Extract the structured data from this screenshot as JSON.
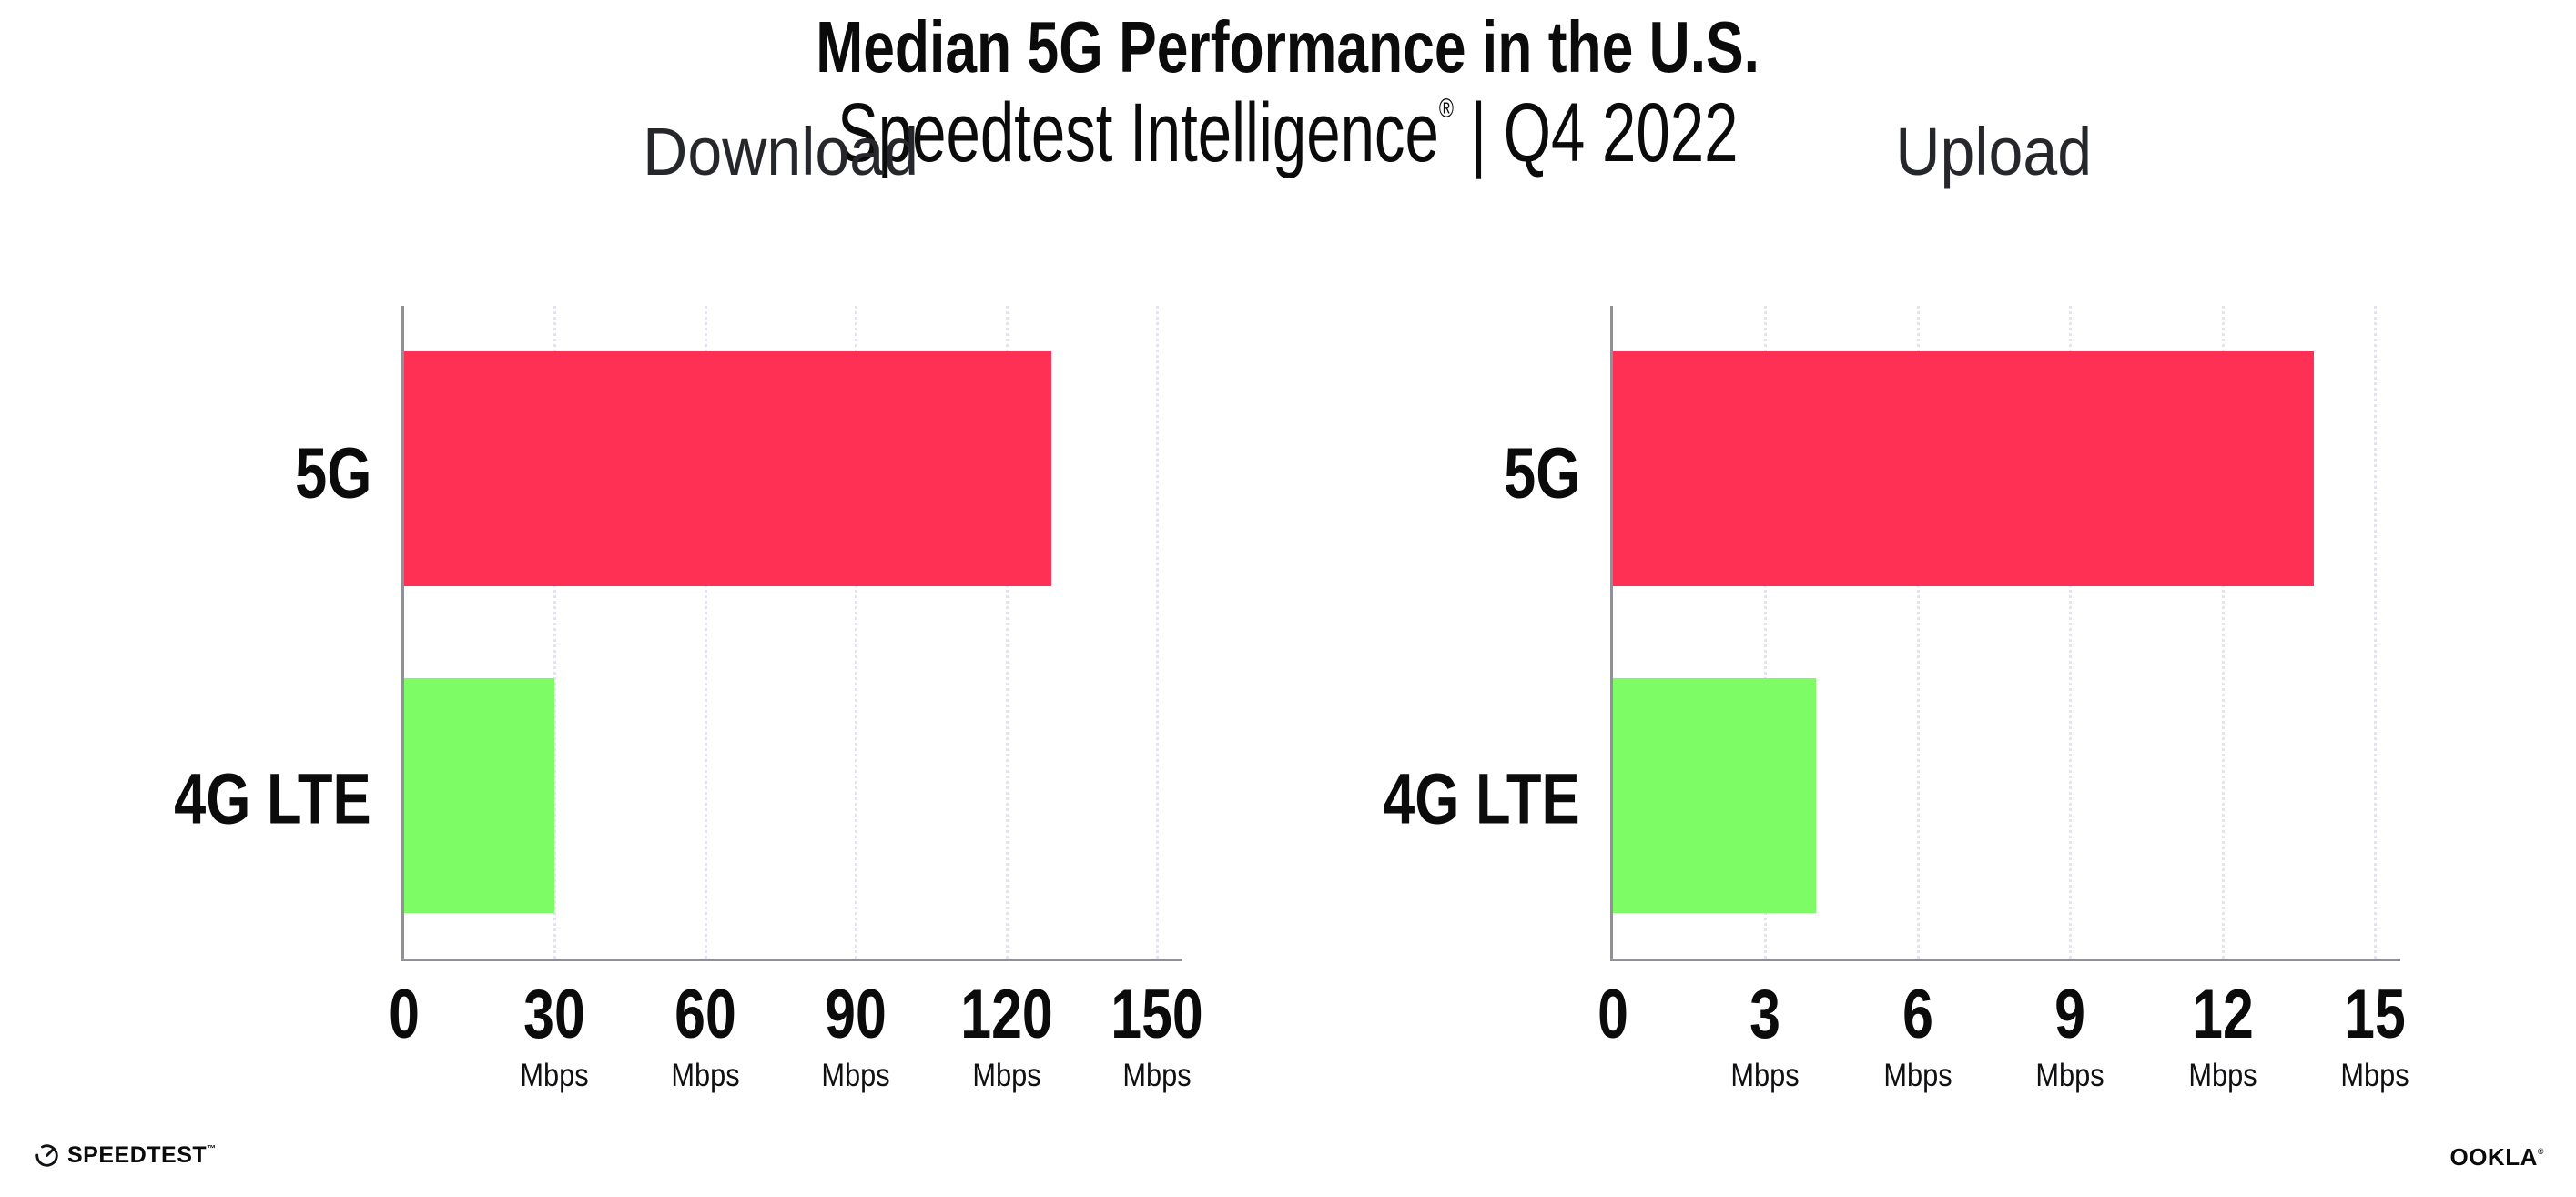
{
  "header": {
    "title": "Median 5G Performance in the U.S.",
    "subtitle_brand": "Speedtest Intelligence",
    "subtitle_reg": "®",
    "subtitle_sep": " | ",
    "subtitle_period": "Q4 2022"
  },
  "chart_data": [
    {
      "type": "bar",
      "orientation": "horizontal",
      "title": "Download",
      "categories": [
        "5G",
        "4G LTE"
      ],
      "values": [
        129,
        30
      ],
      "unit": "Mbps",
      "xlabel": "",
      "ylabel": "",
      "xlim": [
        0,
        150
      ],
      "ticks": [
        0,
        30,
        60,
        90,
        120,
        150
      ],
      "bar_colors": [
        "#FF3054",
        "#7DFC66"
      ],
      "grid": "dotted-vertical-at-ticks",
      "legend": "none"
    },
    {
      "type": "bar",
      "orientation": "horizontal",
      "title": "Upload",
      "categories": [
        "5G",
        "4G LTE"
      ],
      "values": [
        13.8,
        4
      ],
      "unit": "Mbps",
      "xlabel": "",
      "ylabel": "",
      "xlim": [
        0,
        15
      ],
      "ticks": [
        0,
        3,
        6,
        9,
        12,
        15
      ],
      "bar_colors": [
        "#FF3054",
        "#7DFC66"
      ],
      "grid": "dotted-vertical-at-ticks",
      "legend": "none"
    }
  ],
  "footer": {
    "speedtest_label": "SPEEDTEST",
    "speedtest_tm": "™",
    "ookla_label": "OOKLA",
    "ookla_reg": "®"
  },
  "colors": {
    "bar_5g": "#FF3054",
    "bar_4g": "#7DFC66",
    "axis": "#909098",
    "grid_dots": "#E4E4EE",
    "title_text": "#0B0B0C",
    "panel_title_text": "#26272A"
  }
}
